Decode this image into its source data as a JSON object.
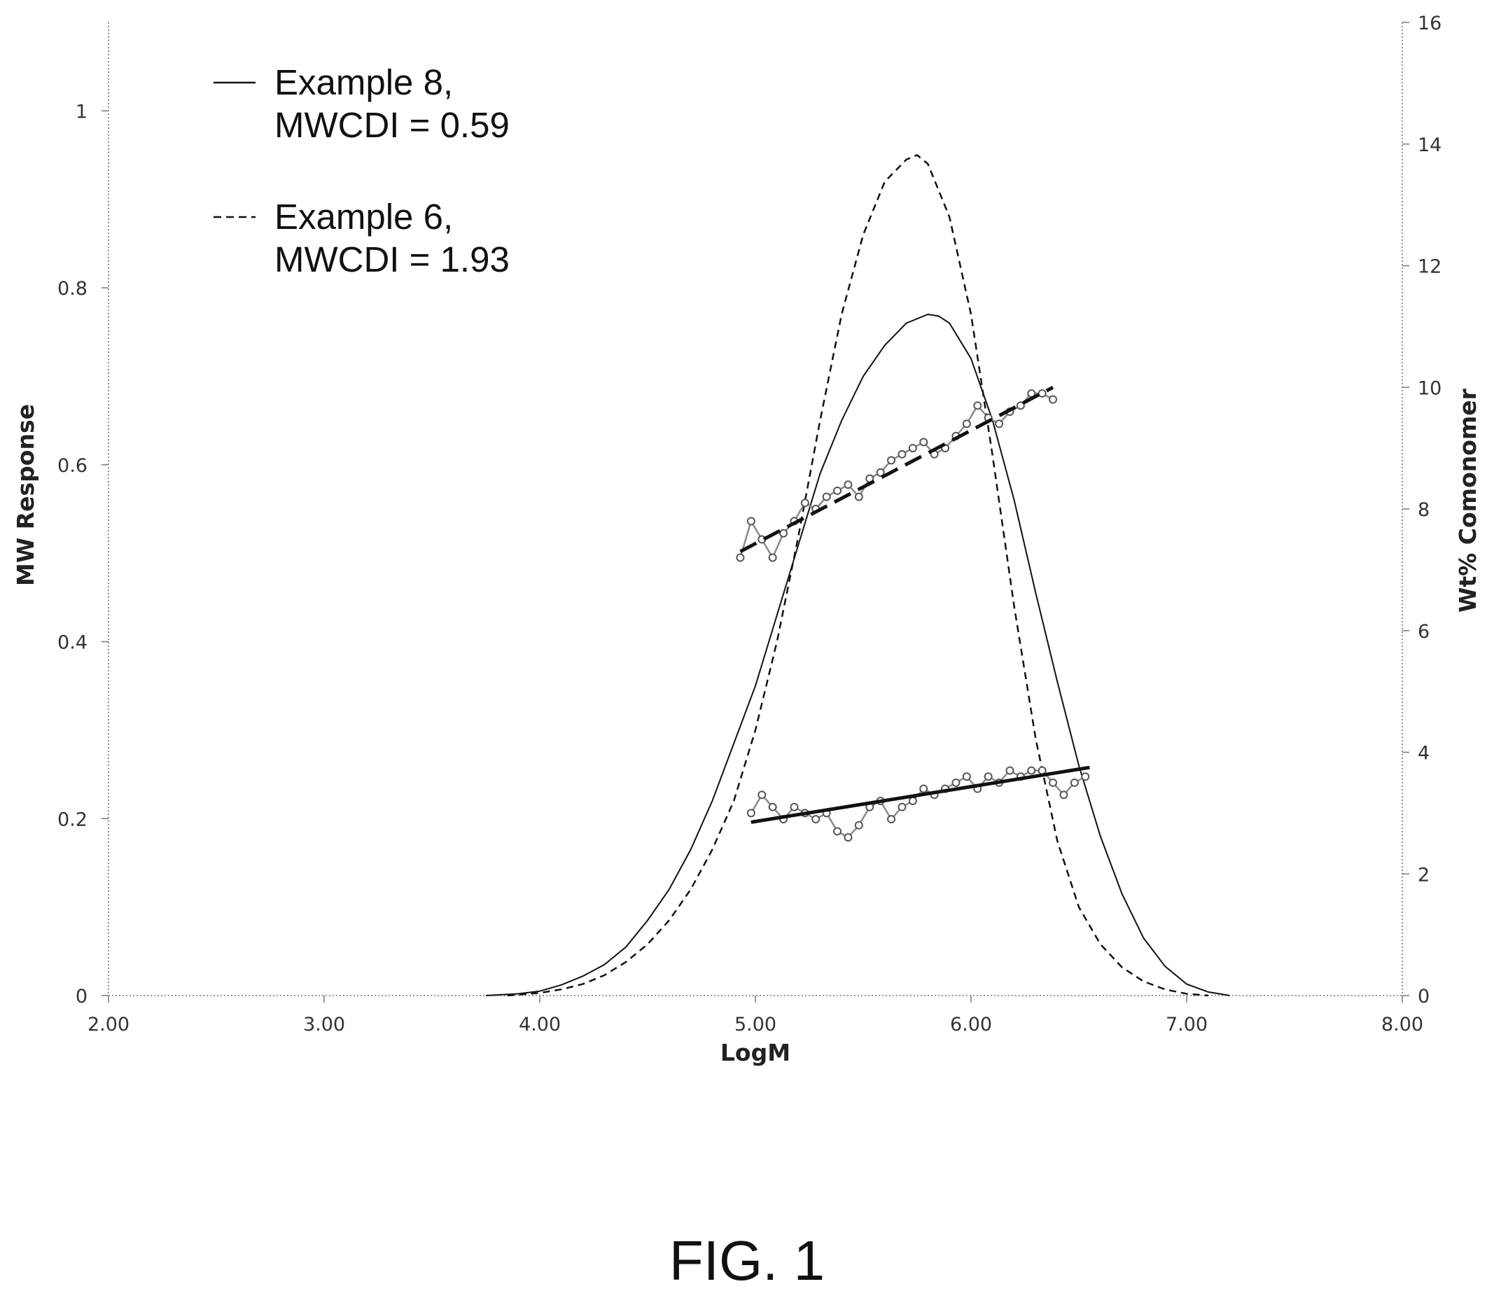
{
  "chart_data": {
    "type": "line",
    "title": "",
    "xlabel": "LogM",
    "ylabel": "MW Response",
    "y2label": "Wt% Comonomer",
    "xlim": [
      2.0,
      8.0
    ],
    "ylim": [
      0,
      1.1
    ],
    "y2lim": [
      0,
      16
    ],
    "x_ticks": [
      "2.00",
      "3.00",
      "4.00",
      "5.00",
      "6.00",
      "7.00",
      "8.00"
    ],
    "y_ticks": [
      "0",
      "0.2",
      "0.4",
      "0.6",
      "0.8",
      "1"
    ],
    "y2_ticks": [
      "0",
      "2",
      "4",
      "6",
      "8",
      "10",
      "12",
      "14",
      "16"
    ],
    "grid": false,
    "legend_position": "top-left",
    "legend": [
      {
        "line1": "Example 8,",
        "line2": "MWCDI = 0.59",
        "style": "solid"
      },
      {
        "line1": "Example 6,",
        "line2": "MWCDI = 1.93",
        "style": "dashed"
      }
    ],
    "series": [
      {
        "name": "Example 8,",
        "axis": "left",
        "style": "solid",
        "x": [
          3.75,
          3.9,
          4.0,
          4.1,
          4.2,
          4.3,
          4.4,
          4.5,
          4.6,
          4.7,
          4.8,
          4.9,
          5.0,
          5.1,
          5.2,
          5.3,
          5.4,
          5.5,
          5.6,
          5.7,
          5.8,
          5.85,
          5.9,
          6.0,
          6.1,
          6.2,
          6.3,
          6.4,
          6.5,
          6.6,
          6.7,
          6.8,
          6.9,
          7.0,
          7.1,
          7.2
        ],
        "y": [
          0.0,
          0.002,
          0.005,
          0.012,
          0.022,
          0.035,
          0.055,
          0.085,
          0.12,
          0.165,
          0.22,
          0.285,
          0.35,
          0.43,
          0.51,
          0.59,
          0.65,
          0.7,
          0.735,
          0.76,
          0.77,
          0.768,
          0.76,
          0.72,
          0.65,
          0.56,
          0.455,
          0.355,
          0.26,
          0.18,
          0.115,
          0.065,
          0.033,
          0.013,
          0.004,
          0.0
        ]
      },
      {
        "name": "Example 6,",
        "axis": "left",
        "style": "dashed",
        "x": [
          3.85,
          4.0,
          4.1,
          4.2,
          4.3,
          4.4,
          4.5,
          4.6,
          4.7,
          4.8,
          4.9,
          5.0,
          5.1,
          5.2,
          5.3,
          5.4,
          5.5,
          5.6,
          5.7,
          5.75,
          5.8,
          5.9,
          6.0,
          6.1,
          6.2,
          6.3,
          6.4,
          6.5,
          6.6,
          6.7,
          6.8,
          6.9,
          7.0,
          7.1
        ],
        "y": [
          0.0,
          0.003,
          0.007,
          0.013,
          0.023,
          0.038,
          0.058,
          0.085,
          0.12,
          0.165,
          0.22,
          0.3,
          0.4,
          0.52,
          0.65,
          0.77,
          0.86,
          0.92,
          0.945,
          0.95,
          0.94,
          0.88,
          0.77,
          0.61,
          0.44,
          0.29,
          0.175,
          0.1,
          0.058,
          0.032,
          0.016,
          0.007,
          0.002,
          0.0
        ]
      },
      {
        "name": "",
        "axis": "right",
        "style": "markers",
        "x": [
          4.93,
          4.98,
          5.03,
          5.08,
          5.13,
          5.18,
          5.23,
          5.28,
          5.33,
          5.38,
          5.43,
          5.48,
          5.53,
          5.58,
          5.63,
          5.68,
          5.73,
          5.78,
          5.83,
          5.88,
          5.93,
          5.98,
          6.03,
          6.08,
          6.13,
          6.18,
          6.23,
          6.28,
          6.33,
          6.38
        ],
        "y": [
          7.2,
          7.8,
          7.5,
          7.2,
          7.6,
          7.8,
          8.1,
          8.0,
          8.2,
          8.3,
          8.4,
          8.2,
          8.5,
          8.6,
          8.8,
          8.9,
          9.0,
          9.1,
          8.9,
          9.0,
          9.2,
          9.4,
          9.7,
          9.5,
          9.4,
          9.6,
          9.7,
          9.9,
          9.9,
          9.8
        ]
      },
      {
        "name": "",
        "axis": "right",
        "style": "dashed-fit",
        "x": [
          4.93,
          6.38
        ],
        "y": [
          7.3,
          10.0
        ]
      },
      {
        "name": "",
        "axis": "right",
        "style": "markers",
        "x": [
          4.98,
          5.03,
          5.08,
          5.13,
          5.18,
          5.23,
          5.28,
          5.33,
          5.38,
          5.43,
          5.48,
          5.53,
          5.58,
          5.63,
          5.68,
          5.73,
          5.78,
          5.83,
          5.88,
          5.93,
          5.98,
          6.03,
          6.08,
          6.13,
          6.18,
          6.23,
          6.28,
          6.33,
          6.38,
          6.43,
          6.48,
          6.53
        ],
        "y": [
          3.0,
          3.3,
          3.1,
          2.9,
          3.1,
          3.0,
          2.9,
          3.0,
          2.7,
          2.6,
          2.8,
          3.1,
          3.2,
          2.9,
          3.1,
          3.2,
          3.4,
          3.3,
          3.4,
          3.5,
          3.6,
          3.4,
          3.6,
          3.5,
          3.7,
          3.6,
          3.7,
          3.7,
          3.5,
          3.3,
          3.5,
          3.6
        ]
      },
      {
        "name": "",
        "axis": "right",
        "style": "solid-fit",
        "x": [
          4.98,
          6.55
        ],
        "y": [
          2.85,
          3.75
        ]
      }
    ],
    "figure_label": "FIG. 1"
  }
}
